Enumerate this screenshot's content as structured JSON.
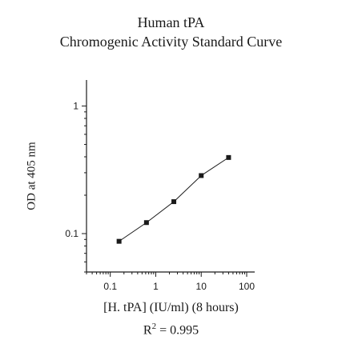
{
  "chart_data": {
    "type": "line",
    "title": "Human tPA",
    "subtitle": "Chromogenic Activity Standard Curve",
    "xlabel": "[H. tPA]  (IU/ml) (8 hours)",
    "ylabel": "OD at 405 nm",
    "x_scale": "log",
    "y_scale": "log",
    "xlim": [
      0.03,
      150
    ],
    "ylim": [
      0.05,
      1.6
    ],
    "x_ticks": [
      "0.1",
      "1",
      "10",
      "100"
    ],
    "y_ticks": [
      "0.1",
      "1"
    ],
    "grid": false,
    "series": [
      {
        "x": [
          0.156,
          0.625,
          2.5,
          10,
          40
        ],
        "y": [
          0.087,
          0.122,
          0.178,
          0.285,
          0.395
        ],
        "marker": "square",
        "color": "#1a1a1a"
      }
    ],
    "r2_label": "R",
    "r2_sup": "2",
    "r2_value": " = 0.995"
  }
}
